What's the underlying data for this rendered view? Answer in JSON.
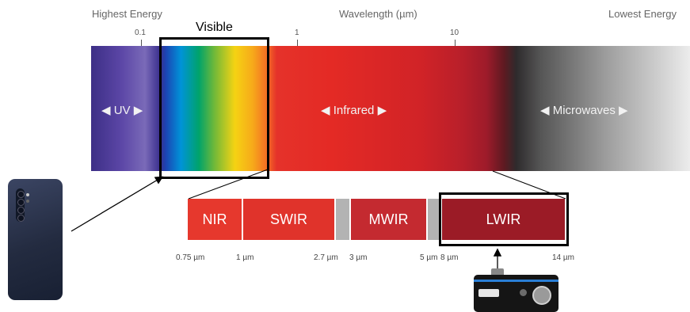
{
  "header": {
    "highest_energy": "Highest Energy",
    "wavelength": "Wavelength (µm)",
    "lowest_energy": "Lowest Energy"
  },
  "scale_ticks": [
    "0.1",
    "1",
    "10"
  ],
  "visible_label": "Visible",
  "bands": {
    "uv": "◀  UV  ▶",
    "infrared": "◀     Infrared     ▶",
    "microwaves": "◀     Microwaves     ▶"
  },
  "subbands": [
    "NIR",
    "SWIR",
    "MWIR",
    "LWIR"
  ],
  "subband_ticks": [
    "0.75 µm",
    "1 µm",
    "2.7 µm",
    "3 µm",
    "5 µm",
    "8 µm",
    "14 µm"
  ],
  "colors": {
    "nir": "#e6382d",
    "swir": "#e0332b",
    "mwir": "#c42a30",
    "lwir": "#9b1b26",
    "gap": "#b3b3b3",
    "frame": "#000000"
  },
  "icons": [
    "smartphone-icon",
    "thermal-camera-icon"
  ]
}
